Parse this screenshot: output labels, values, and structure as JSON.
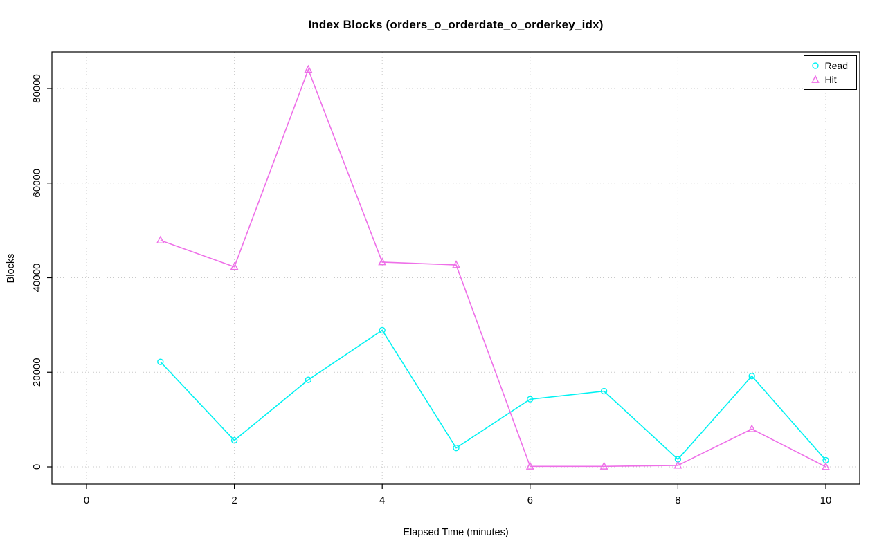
{
  "chart_data": {
    "type": "line",
    "title": "Index Blocks (orders_o_orderdate_o_orderkey_idx)",
    "xlabel": "Elapsed Time (minutes)",
    "ylabel": "Blocks",
    "x": [
      1,
      2,
      3,
      4,
      5,
      6,
      7,
      8,
      9,
      10
    ],
    "series": [
      {
        "name": "Read",
        "marker": "circle",
        "color": "#00F2F2",
        "values": [
          22200,
          5600,
          18400,
          28900,
          4000,
          14300,
          16000,
          1600,
          19200,
          1400
        ]
      },
      {
        "name": "Hit",
        "marker": "triangle",
        "color": "#EE6FE8",
        "values": [
          47900,
          42300,
          84000,
          43300,
          42700,
          100,
          100,
          300,
          8000,
          0
        ]
      }
    ],
    "x_axis": {
      "min": 0,
      "max": 10,
      "ticks": [
        0,
        2,
        4,
        6,
        8,
        10
      ]
    },
    "y_axis": {
      "min": 0,
      "max": 80000,
      "ticks": [
        0,
        20000,
        40000,
        60000,
        80000
      ]
    },
    "grid": "dotted",
    "legend_position": "top-right",
    "background": "#ffffff"
  }
}
